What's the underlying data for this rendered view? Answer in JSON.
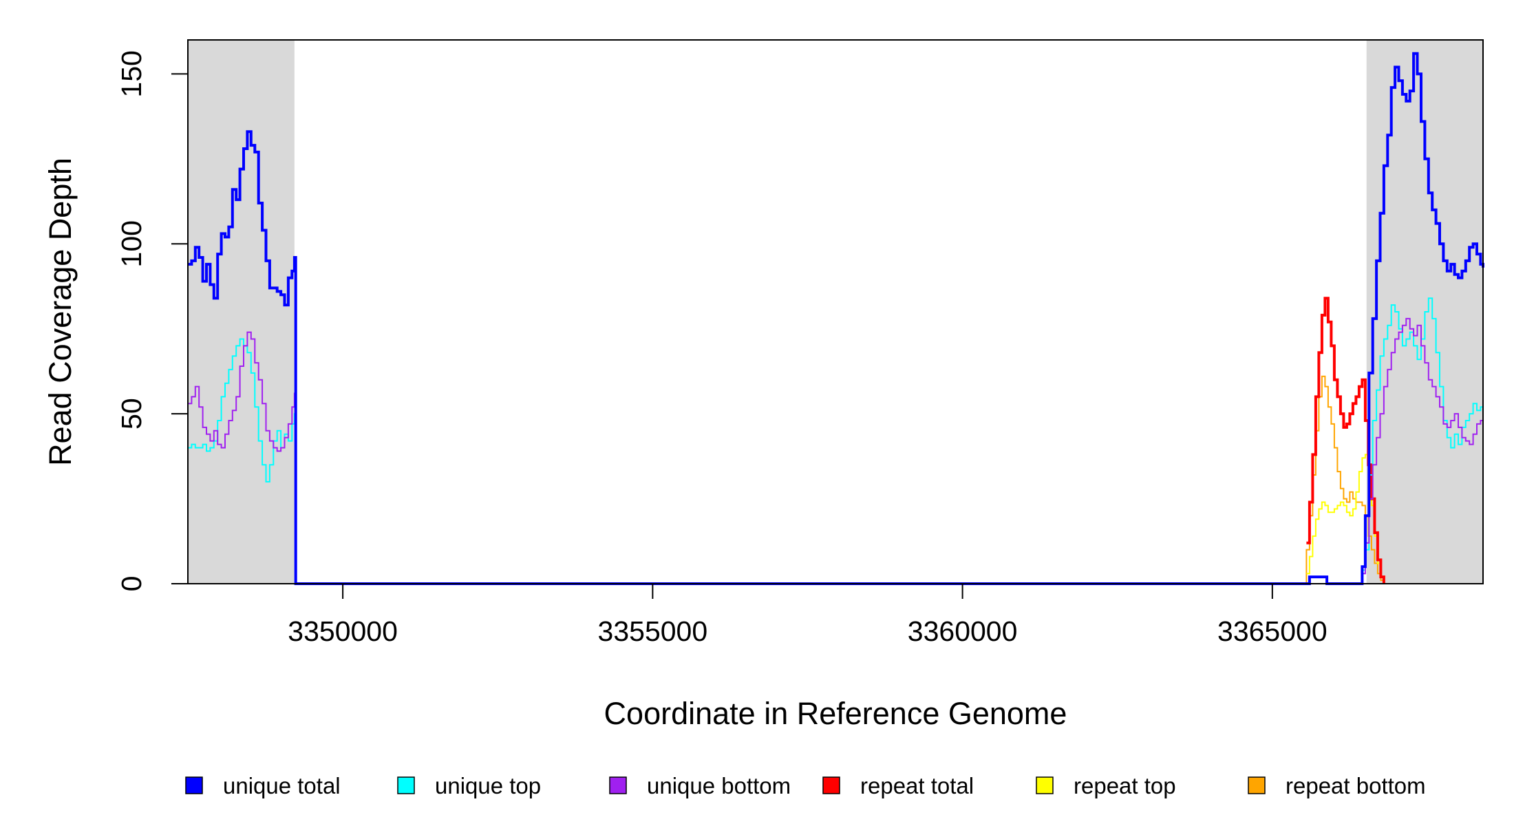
{
  "chart_data": {
    "type": "line",
    "title": "",
    "xlabel": "Coordinate in Reference Genome",
    "ylabel": "Read Coverage Depth",
    "xlim": [
      3347500,
      3368400
    ],
    "ylim": [
      0,
      160
    ],
    "xticks": [
      3350000,
      3355000,
      3360000,
      3365000
    ],
    "xtick_labels": [
      "3350000",
      "3355000",
      "3360000",
      "3365000"
    ],
    "yticks": [
      0,
      50,
      100,
      150
    ],
    "ytick_labels": [
      "0",
      "50",
      "100",
      "150"
    ],
    "grid": false,
    "legend_position": "bottom",
    "shaded_regions": [
      {
        "x": [
          3347500,
          3349220
        ],
        "color": "#d9d9d9"
      },
      {
        "x": [
          3366520,
          3368400
        ],
        "color": "#d9d9d9"
      }
    ],
    "series": [
      {
        "name": "unique total",
        "color": "#0000ff",
        "x": [
          3347500,
          3347560,
          3347620,
          3347680,
          3347740,
          3347800,
          3347860,
          3347920,
          3347980,
          3348040,
          3348100,
          3348160,
          3348220,
          3348280,
          3348340,
          3348400,
          3348460,
          3348520,
          3348580,
          3348640,
          3348700,
          3348760,
          3348820,
          3348880,
          3348940,
          3349000,
          3349060,
          3349120,
          3349180,
          3349220,
          3349240,
          3365550,
          3365600,
          3365860,
          3365880,
          3366400,
          3366450,
          3366500,
          3366560,
          3366620,
          3366680,
          3366740,
          3366800,
          3366860,
          3366920,
          3366980,
          3367040,
          3367100,
          3367160,
          3367220,
          3367280,
          3367340,
          3367400,
          3367460,
          3367520,
          3367580,
          3367640,
          3367700,
          3367760,
          3367820,
          3367880,
          3367940,
          3368000,
          3368060,
          3368120,
          3368180,
          3368240,
          3368300,
          3368360,
          3368400
        ],
        "y": [
          94,
          95,
          99,
          96,
          89,
          94,
          88,
          84,
          97,
          103,
          102,
          105,
          116,
          113,
          122,
          128,
          133,
          129,
          127,
          112,
          104,
          95,
          87,
          87,
          86,
          85,
          82,
          90,
          92,
          96,
          0,
          0,
          2,
          2,
          0,
          0,
          5,
          20,
          62,
          78,
          95,
          109,
          123,
          132,
          146,
          152,
          148,
          144,
          142,
          145,
          156,
          150,
          136,
          125,
          115,
          110,
          106,
          100,
          95,
          92,
          94,
          91,
          90,
          92,
          95,
          99,
          100,
          97,
          94,
          93
        ],
        "stroke_width": 4
      },
      {
        "name": "unique top",
        "color": "#00ffff",
        "x": [
          3347500,
          3347560,
          3347620,
          3347680,
          3347740,
          3347800,
          3347860,
          3347920,
          3347980,
          3348040,
          3348100,
          3348160,
          3348220,
          3348280,
          3348340,
          3348400,
          3348460,
          3348520,
          3348580,
          3348640,
          3348700,
          3348760,
          3348820,
          3348880,
          3348940,
          3349000,
          3349060,
          3349120,
          3349180,
          3349220,
          3349240,
          3366400,
          3366450,
          3366500,
          3366560,
          3366620,
          3366680,
          3366740,
          3366800,
          3366860,
          3366920,
          3366980,
          3367040,
          3367100,
          3367160,
          3367220,
          3367280,
          3367340,
          3367400,
          3367460,
          3367520,
          3367580,
          3367640,
          3367700,
          3367760,
          3367820,
          3367880,
          3367940,
          3368000,
          3368060,
          3368120,
          3368180,
          3368240,
          3368300,
          3368360,
          3368400
        ],
        "y": [
          40,
          41,
          40,
          40,
          41,
          39,
          40,
          42,
          48,
          55,
          59,
          63,
          67,
          70,
          72,
          70,
          68,
          62,
          52,
          42,
          35,
          30,
          35,
          42,
          45,
          40,
          44,
          42,
          47,
          50,
          0,
          0,
          4,
          10,
          32,
          48,
          57,
          67,
          72,
          76,
          82,
          80,
          75,
          70,
          72,
          74,
          70,
          66,
          72,
          80,
          84,
          78,
          68,
          58,
          48,
          43,
          40,
          44,
          41,
          46,
          48,
          50,
          53,
          51,
          52,
          49
        ],
        "stroke_width": 2
      },
      {
        "name": "unique bottom",
        "color": "#a020f0",
        "x": [
          3347500,
          3347560,
          3347620,
          3347680,
          3347740,
          3347800,
          3347860,
          3347920,
          3347980,
          3348040,
          3348100,
          3348160,
          3348220,
          3348280,
          3348340,
          3348400,
          3348460,
          3348520,
          3348580,
          3348640,
          3348700,
          3348760,
          3348820,
          3348880,
          3348940,
          3349000,
          3349060,
          3349120,
          3349180,
          3349220,
          3349240,
          3366400,
          3366450,
          3366500,
          3366560,
          3366620,
          3366680,
          3366740,
          3366800,
          3366860,
          3366920,
          3366980,
          3367040,
          3367100,
          3367160,
          3367220,
          3367280,
          3367340,
          3367400,
          3367460,
          3367520,
          3367580,
          3367640,
          3367700,
          3367760,
          3367820,
          3367880,
          3367940,
          3368000,
          3368060,
          3368120,
          3368180,
          3368240,
          3368300,
          3368360,
          3368400
        ],
        "y": [
          53,
          55,
          58,
          52,
          46,
          44,
          42,
          45,
          41,
          40,
          44,
          48,
          51,
          55,
          64,
          70,
          74,
          72,
          65,
          60,
          53,
          45,
          42,
          40,
          39,
          40,
          43,
          47,
          52,
          56,
          0,
          0,
          3,
          12,
          25,
          35,
          43,
          50,
          58,
          63,
          68,
          72,
          74,
          76,
          78,
          75,
          73,
          76,
          70,
          65,
          60,
          58,
          55,
          52,
          47,
          46,
          48,
          50,
          46,
          43,
          42,
          41,
          44,
          47,
          48,
          47
        ],
        "stroke_width": 2
      },
      {
        "name": "repeat total",
        "color": "#ff0000",
        "x": [
          3365550,
          3365600,
          3365650,
          3365700,
          3365750,
          3365800,
          3365850,
          3365900,
          3365950,
          3366000,
          3366050,
          3366100,
          3366150,
          3366200,
          3366250,
          3366300,
          3366350,
          3366400,
          3366450,
          3366500,
          3366550,
          3366600,
          3366650,
          3366700,
          3366750,
          3366800
        ],
        "y": [
          12,
          24,
          38,
          55,
          68,
          79,
          84,
          77,
          70,
          60,
          55,
          50,
          46,
          47,
          50,
          53,
          55,
          58,
          60,
          48,
          35,
          25,
          15,
          7,
          2,
          0
        ],
        "stroke_width": 4
      },
      {
        "name": "repeat top",
        "color": "#ffff00",
        "x": [
          3365550,
          3365600,
          3365650,
          3365700,
          3365750,
          3365800,
          3365850,
          3365900,
          3365950,
          3366000,
          3366050,
          3366100,
          3366150,
          3366200,
          3366250,
          3366300,
          3366350,
          3366400,
          3366450,
          3366500,
          3366550,
          3366600,
          3366650,
          3366700,
          3366750,
          3366800
        ],
        "y": [
          3,
          8,
          14,
          19,
          22,
          24,
          23,
          21,
          21,
          22,
          23,
          24,
          23,
          21,
          20,
          22,
          27,
          33,
          37,
          38,
          32,
          23,
          14,
          6,
          2,
          0
        ],
        "stroke_width": 2
      },
      {
        "name": "repeat bottom",
        "color": "#ffa500",
        "x": [
          3347500,
          3349240,
          3349250,
          3365550,
          3365600,
          3365650,
          3365700,
          3365750,
          3365800,
          3365850,
          3365900,
          3365950,
          3366000,
          3366050,
          3366100,
          3366150,
          3366200,
          3366250,
          3366300,
          3366350,
          3366400,
          3366450,
          3366500,
          3366550,
          3366600,
          3366650,
          3366700,
          3366750,
          3366800,
          3368400
        ],
        "y": [
          0,
          0,
          0,
          10,
          20,
          32,
          45,
          55,
          61,
          58,
          52,
          47,
          40,
          33,
          28,
          25,
          24,
          27,
          25,
          24,
          24,
          23,
          20,
          14,
          10,
          6,
          3,
          1,
          0,
          0
        ],
        "stroke_width": 2
      }
    ]
  }
}
